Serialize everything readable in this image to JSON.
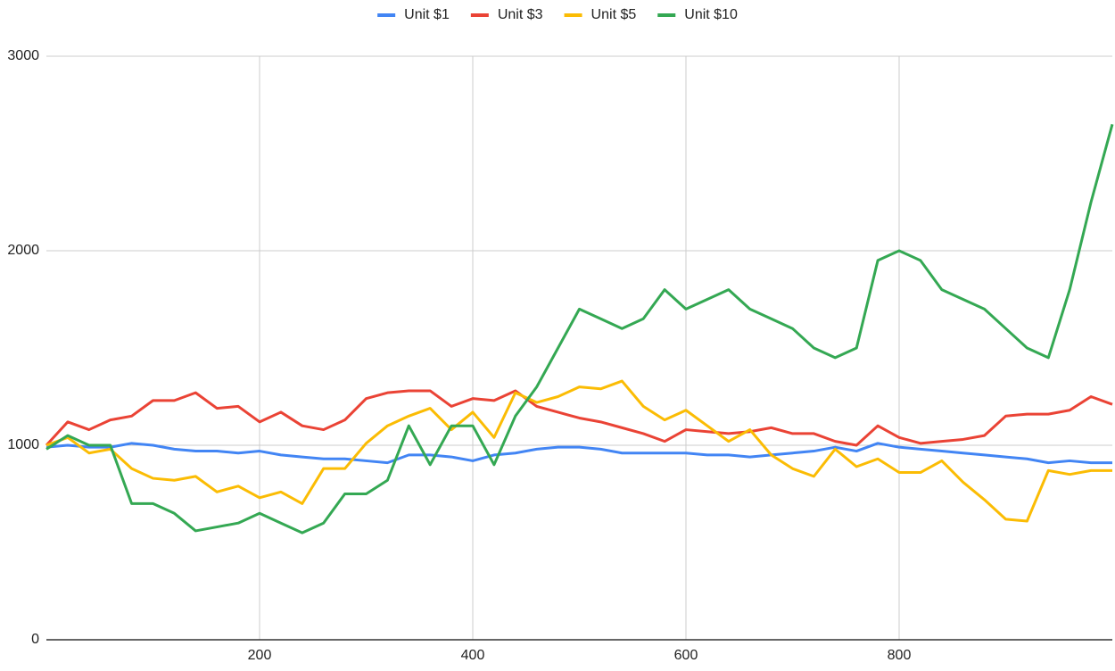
{
  "chart_data": {
    "type": "line",
    "x": [
      0,
      20,
      40,
      60,
      80,
      100,
      120,
      140,
      160,
      180,
      200,
      220,
      240,
      260,
      280,
      300,
      320,
      340,
      360,
      380,
      400,
      420,
      440,
      460,
      480,
      500,
      520,
      540,
      560,
      580,
      600,
      620,
      640,
      660,
      680,
      700,
      720,
      740,
      760,
      780,
      800,
      820,
      840,
      860,
      880,
      900,
      920,
      940,
      960,
      980,
      1000
    ],
    "series": [
      {
        "name": "Unit $1",
        "color": "#4285f4",
        "values": [
          990,
          1000,
          990,
          990,
          1010,
          1000,
          980,
          970,
          970,
          960,
          970,
          950,
          940,
          930,
          930,
          920,
          910,
          950,
          950,
          940,
          920,
          950,
          960,
          980,
          990,
          990,
          980,
          960,
          960,
          960,
          960,
          950,
          950,
          940,
          950,
          960,
          970,
          990,
          970,
          1010,
          990,
          980,
          970,
          960,
          950,
          940,
          930,
          910,
          920,
          910,
          910
        ]
      },
      {
        "name": "Unit $3",
        "color": "#ea4335",
        "values": [
          1000,
          1120,
          1080,
          1130,
          1150,
          1230,
          1230,
          1270,
          1190,
          1200,
          1120,
          1170,
          1100,
          1080,
          1130,
          1240,
          1270,
          1280,
          1280,
          1200,
          1240,
          1230,
          1280,
          1200,
          1170,
          1140,
          1120,
          1090,
          1060,
          1020,
          1080,
          1070,
          1060,
          1070,
          1090,
          1060,
          1060,
          1020,
          1000,
          1100,
          1040,
          1010,
          1020,
          1030,
          1050,
          1150,
          1160,
          1160,
          1180,
          1250,
          1210
        ]
      },
      {
        "name": "Unit $5",
        "color": "#fbbc04",
        "values": [
          1000,
          1040,
          960,
          980,
          880,
          830,
          820,
          840,
          760,
          790,
          730,
          760,
          700,
          880,
          880,
          1010,
          1100,
          1150,
          1190,
          1080,
          1170,
          1040,
          1270,
          1220,
          1250,
          1300,
          1290,
          1330,
          1200,
          1130,
          1180,
          1100,
          1020,
          1080,
          950,
          880,
          840,
          980,
          890,
          930,
          860,
          860,
          920,
          810,
          720,
          620,
          610,
          870,
          850,
          870,
          870
        ]
      },
      {
        "name": "Unit $10",
        "color": "#34a853",
        "values": [
          980,
          1050,
          1000,
          1000,
          700,
          700,
          650,
          560,
          580,
          600,
          650,
          600,
          550,
          600,
          750,
          750,
          820,
          1100,
          900,
          1100,
          1100,
          900,
          1150,
          1300,
          1500,
          1700,
          1650,
          1600,
          1650,
          1800,
          1700,
          1750,
          1800,
          1700,
          1650,
          1600,
          1500,
          1450,
          1500,
          1950,
          2000,
          1950,
          1800,
          1750,
          1700,
          1600,
          1500,
          1450,
          1800,
          2250,
          2650
        ]
      }
    ],
    "xlim": [
      0,
      1000
    ],
    "xticks": [
      200,
      400,
      600,
      800
    ],
    "ylim": [
      0,
      3000
    ],
    "yticks": [
      0,
      1000,
      2000,
      3000
    ],
    "grid": true,
    "legend": "top"
  }
}
